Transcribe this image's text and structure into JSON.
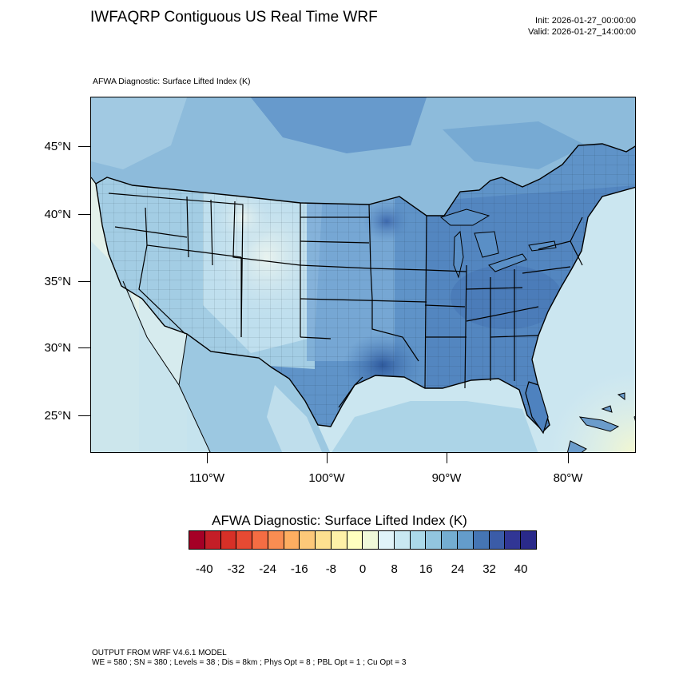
{
  "header": {
    "title": "IWFAQRP Contiguous US Real Time WRF",
    "init": "Init: 2026-01-27_00:00:00",
    "valid": "Valid: 2026-01-27_14:00:00",
    "subtitle": "AFWA Diagnostic: Surface Lifted Index   (K)"
  },
  "map": {
    "field": "Surface Lifted Index",
    "lat_labels": [
      "45°N",
      "40°N",
      "35°N",
      "30°N",
      "25°N"
    ],
    "lon_labels": [
      "110°W",
      "100°W",
      "90°W",
      "80°W"
    ],
    "land_color": "#6fa6cf",
    "ocean_color": "#bfe0ee"
  },
  "colorbar": {
    "title": "AFWA Diagnostic: Surface Lifted Index  (K)",
    "tick_labels": [
      "-40",
      "-32",
      "-24",
      "-16",
      "-8",
      "0",
      "8",
      "16",
      "24",
      "32",
      "40"
    ],
    "colors": [
      "#a50026",
      "#c41e27",
      "#d73027",
      "#e64a33",
      "#f46d43",
      "#f88d52",
      "#fdae61",
      "#fdc879",
      "#fee090",
      "#fef1a8",
      "#ffffbf",
      "#f0f9d8",
      "#e0f3f8",
      "#c9e8f2",
      "#abd9e9",
      "#92c5de",
      "#74add1",
      "#649ccb",
      "#4575b4",
      "#3b5ca8",
      "#313695",
      "#2a2a8a"
    ]
  },
  "footer": {
    "line1": "OUTPUT FROM WRF V4.6.1 MODEL",
    "line2": "WE = 580 ; SN = 380 ; Levels = 38 ; Dis = 8km ; Phys Opt = 8 ; PBL Opt = 1 ; Cu Opt = 3"
  }
}
